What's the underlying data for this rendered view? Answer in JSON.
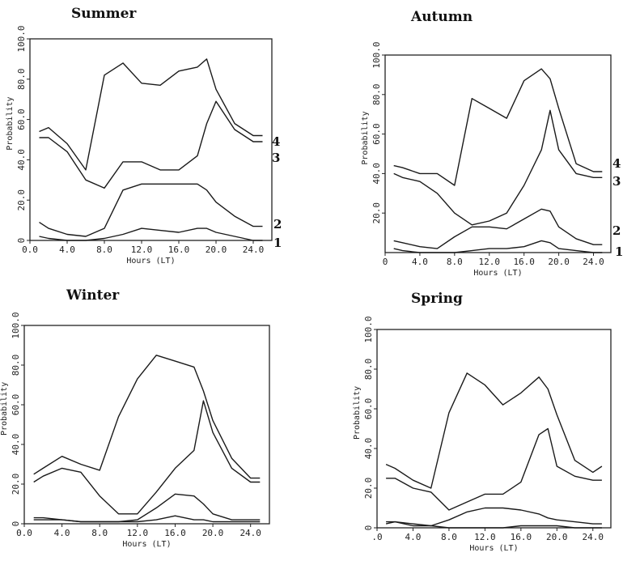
{
  "figure": {
    "series_labels": [
      "1",
      "2",
      "3",
      "4"
    ]
  },
  "chart_data": [
    {
      "type": "line",
      "title": "Summer",
      "xlabel": "Hours (LT)",
      "ylabel": "Probability",
      "xlim": [
        0,
        26
      ],
      "ylim": [
        0,
        100
      ],
      "x_ticks": [
        "0.0",
        "4.0",
        "8.0",
        "12.0",
        "16.0",
        "20.0",
        "24.0"
      ],
      "y_ticks": [
        "0",
        "20.0",
        "40.0",
        "60.0",
        "80.0",
        "100.0"
      ],
      "x": [
        1,
        2,
        4,
        6,
        8,
        10,
        12,
        14,
        16,
        18,
        19,
        20,
        22,
        24,
        25
      ],
      "series": [
        {
          "name": "1",
          "values": [
            2,
            1,
            0,
            0,
            1,
            3,
            6,
            5,
            4,
            6,
            6,
            4,
            2,
            0,
            0
          ]
        },
        {
          "name": "2",
          "values": [
            9,
            6,
            3,
            2,
            6,
            25,
            28,
            28,
            28,
            28,
            25,
            19,
            12,
            7,
            7
          ]
        },
        {
          "name": "3",
          "values": [
            51,
            51,
            44,
            30,
            26,
            39,
            39,
            35,
            35,
            42,
            58,
            69,
            55,
            49,
            49
          ]
        },
        {
          "name": "4",
          "values": [
            54,
            56,
            48,
            35,
            82,
            88,
            78,
            77,
            84,
            86,
            90,
            75,
            58,
            52,
            52
          ]
        }
      ]
    },
    {
      "type": "line",
      "title": "Autumn",
      "xlabel": "Hours (LT)",
      "ylabel": "Probability",
      "xlim": [
        0,
        26
      ],
      "ylim": [
        0,
        100
      ],
      "x_ticks": [
        "0",
        "4.0",
        "8.0",
        "12.0",
        "16.0",
        "20.0",
        "24.0"
      ],
      "y_ticks": [
        "20.0",
        "40.0",
        "60.0",
        "80.0",
        "100.0"
      ],
      "x": [
        1,
        2,
        4,
        6,
        8,
        10,
        12,
        14,
        16,
        18,
        19,
        20,
        22,
        24,
        25
      ],
      "series": [
        {
          "name": "1",
          "values": [
            2,
            1,
            0,
            0,
            0,
            1,
            2,
            2,
            3,
            6,
            5,
            2,
            1,
            0,
            0
          ]
        },
        {
          "name": "2",
          "values": [
            6,
            5,
            3,
            2,
            8,
            13,
            13,
            12,
            17,
            22,
            21,
            13,
            7,
            4,
            4
          ]
        },
        {
          "name": "3",
          "values": [
            40,
            38,
            36,
            30,
            20,
            14,
            16,
            20,
            34,
            52,
            72,
            52,
            40,
            38,
            38
          ]
        },
        {
          "name": "4",
          "values": [
            44,
            43,
            40,
            40,
            34,
            78,
            73,
            68,
            87,
            93,
            88,
            73,
            45,
            41,
            41
          ]
        }
      ]
    },
    {
      "type": "line",
      "title": "Winter",
      "xlabel": "Hours (LT)",
      "ylabel": "Probability",
      "xlim": [
        0,
        26
      ],
      "ylim": [
        0,
        100
      ],
      "x_ticks": [
        "0.0",
        "4.0",
        "8.0",
        "12.0",
        "16.0",
        "20.0",
        "24.0"
      ],
      "y_ticks": [
        "0",
        "20.0",
        "40.0",
        "60.0",
        "80.0",
        "100.0"
      ],
      "x": [
        1,
        2,
        4,
        6,
        8,
        10,
        12,
        14,
        16,
        18,
        19,
        20,
        22,
        24,
        25
      ],
      "series": [
        {
          "name": "1",
          "values": [
            2,
            2,
            2,
            1,
            1,
            1,
            1,
            2,
            4,
            2,
            2,
            1,
            1,
            1,
            1
          ]
        },
        {
          "name": "2",
          "values": [
            3,
            3,
            2,
            1,
            1,
            1,
            2,
            8,
            15,
            14,
            10,
            5,
            2,
            2,
            2
          ]
        },
        {
          "name": "3",
          "values": [
            21,
            24,
            28,
            26,
            14,
            5,
            5,
            16,
            28,
            37,
            62,
            46,
            28,
            21,
            21
          ]
        },
        {
          "name": "4",
          "values": [
            25,
            28,
            34,
            30,
            27,
            54,
            73,
            85,
            82,
            79,
            67,
            52,
            33,
            23,
            23
          ]
        }
      ]
    },
    {
      "type": "line",
      "title": "Spring",
      "xlabel": "Hours (LT)",
      "ylabel": "Probability",
      "xlim": [
        0,
        26
      ],
      "ylim": [
        0,
        100
      ],
      "x_ticks": [
        ".0",
        "4.0",
        "8.0",
        "12.0",
        "16.0",
        "20.0",
        "24.0"
      ],
      "y_ticks": [
        "0",
        "20.0",
        "40.0",
        "60.0",
        "80.0",
        "100.0"
      ],
      "x": [
        1,
        2,
        4,
        6,
        8,
        10,
        12,
        14,
        16,
        18,
        19,
        20,
        22,
        24,
        25
      ],
      "series": [
        {
          "name": "1",
          "values": [
            2,
            3,
            1,
            1,
            0,
            0,
            0,
            0,
            1,
            1,
            1,
            1,
            0,
            0,
            0
          ]
        },
        {
          "name": "2",
          "values": [
            3,
            3,
            2,
            1,
            4,
            8,
            10,
            10,
            9,
            7,
            5,
            4,
            3,
            2,
            2
          ]
        },
        {
          "name": "3",
          "values": [
            25,
            25,
            20,
            18,
            9,
            13,
            17,
            17,
            23,
            47,
            50,
            31,
            26,
            24,
            24
          ]
        },
        {
          "name": "4",
          "values": [
            32,
            30,
            24,
            20,
            58,
            78,
            72,
            62,
            68,
            76,
            70,
            57,
            34,
            28,
            31
          ]
        }
      ]
    }
  ]
}
